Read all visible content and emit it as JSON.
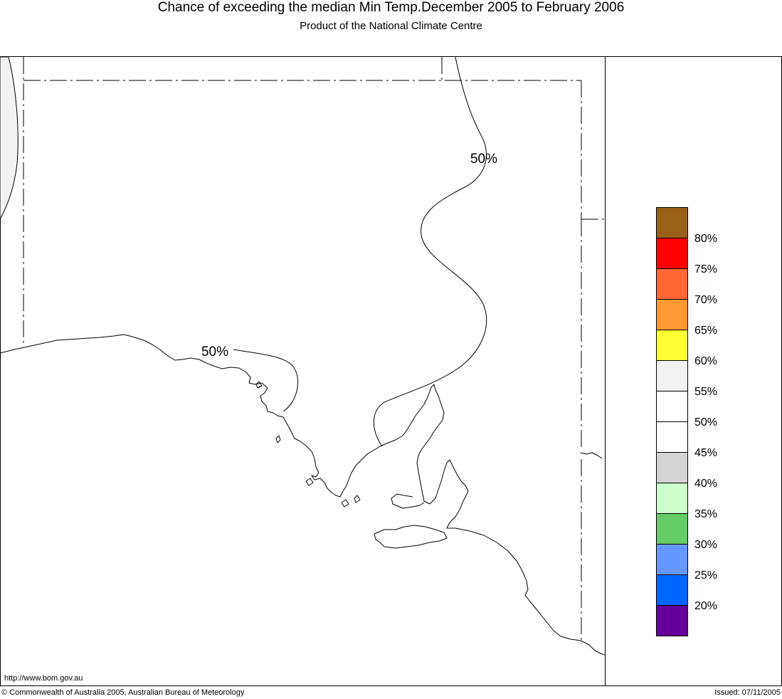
{
  "header": {
    "title": "Chance of exceeding the median Min Temp.December 2005 to February 2006",
    "subtitle": "Product of the National Climate Centre"
  },
  "map": {
    "contour_labels": [
      {
        "text": "50%"
      },
      {
        "text": "50%"
      }
    ],
    "shaded_region": {
      "class": "55-60%",
      "color": "#f2f2f2"
    }
  },
  "legend": {
    "swatches": [
      {
        "color": "#996017"
      },
      {
        "color": "#ff0000"
      },
      {
        "color": "#ff6633"
      },
      {
        "color": "#ff9933"
      },
      {
        "color": "#ffff33"
      },
      {
        "color": "#f2f2f2"
      },
      {
        "color": "#ffffff"
      },
      {
        "color": "#ffffff"
      },
      {
        "color": "#d4d4d4"
      },
      {
        "color": "#ccffcc"
      },
      {
        "color": "#66cc66"
      },
      {
        "color": "#6699ff"
      },
      {
        "color": "#0066ff"
      },
      {
        "color": "#660099"
      }
    ],
    "labels": [
      "80%",
      "75%",
      "70%",
      "65%",
      "60%",
      "55%",
      "50%",
      "45%",
      "40%",
      "35%",
      "30%",
      "25%",
      "20%"
    ]
  },
  "footer": {
    "url": "http://www.bom.gov.au",
    "copyright": "© Commonwealth of Australia 2005, Australian Bureau of Meteorology",
    "issued": "Issued: 07/11/2005"
  }
}
